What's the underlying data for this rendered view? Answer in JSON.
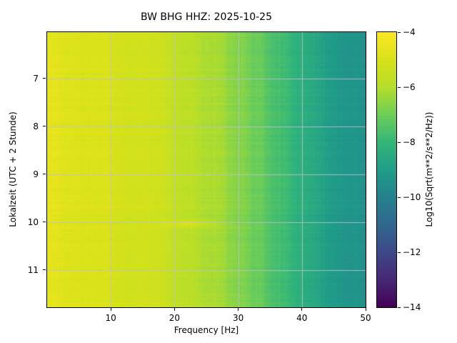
{
  "title": "BW BHG  HHZ: 2025-10-25",
  "axes": {
    "x": {
      "label": "Frequency [Hz]",
      "range": [
        0,
        50
      ],
      "ticks": [
        10,
        20,
        30,
        40,
        50
      ]
    },
    "y": {
      "label": "Lokalzeit (UTC + 2 Stunde)",
      "range": [
        6.03,
        11.78
      ],
      "ticks": [
        7,
        8,
        9,
        10,
        11
      ]
    }
  },
  "colorbar": {
    "label": "Log10(Sqrt(m**2/s**2/Hz))",
    "range": [
      -14,
      -4
    ],
    "ticks": [
      -4,
      -6,
      -8,
      -10,
      -12,
      -14
    ],
    "colormap": "viridis"
  },
  "colors": {
    "grid": "rgba(188,194,200,0.85)",
    "viridis_stops": [
      [
        0.0,
        "#440154"
      ],
      [
        0.1,
        "#482878"
      ],
      [
        0.2,
        "#3e4989"
      ],
      [
        0.3,
        "#31688e"
      ],
      [
        0.4,
        "#26828e"
      ],
      [
        0.5,
        "#1f9e89"
      ],
      [
        0.6,
        "#35b779"
      ],
      [
        0.7,
        "#6ece58"
      ],
      [
        0.8,
        "#b5de2b"
      ],
      [
        0.9,
        "#d8e219"
      ],
      [
        1.0,
        "#fde725"
      ]
    ]
  },
  "chart_data": {
    "type": "heatmap",
    "title": "BW BHG  HHZ: 2025-10-25",
    "xlabel": "Frequency [Hz]",
    "ylabel": "Lokalzeit (UTC + 2 Stunde)",
    "value_label": "Log10(Sqrt(m**2/s**2/Hz))",
    "x_range_hz": [
      0,
      50
    ],
    "y_range_hours": [
      6.03,
      11.78
    ],
    "value_range": [
      -14,
      -4
    ],
    "colormap": "viridis",
    "grid": true,
    "spectrum_profile": [
      [
        0.0,
        -4.55
      ],
      [
        0.5,
        -4.6
      ],
      [
        2,
        -4.8
      ],
      [
        5,
        -4.9
      ],
      [
        10,
        -5.0
      ],
      [
        15,
        -5.2
      ],
      [
        20,
        -5.5
      ],
      [
        25,
        -6.0
      ],
      [
        30,
        -6.6
      ],
      [
        33,
        -7.0
      ],
      [
        36,
        -7.6
      ],
      [
        38,
        -8.0
      ],
      [
        40,
        -8.4
      ],
      [
        43,
        -8.8
      ],
      [
        46,
        -9.1
      ],
      [
        50,
        -9.4
      ]
    ],
    "noise_texture": {
      "column_amp": 0.18,
      "row_amp": 0.1,
      "pixel_amp": 0.12
    },
    "features": [
      {
        "desc": "bright patch",
        "time_center": 10.03,
        "time_sigma": 0.07,
        "freq_center": 22,
        "freq_sigma": 3.5,
        "boost": 0.9
      }
    ]
  }
}
